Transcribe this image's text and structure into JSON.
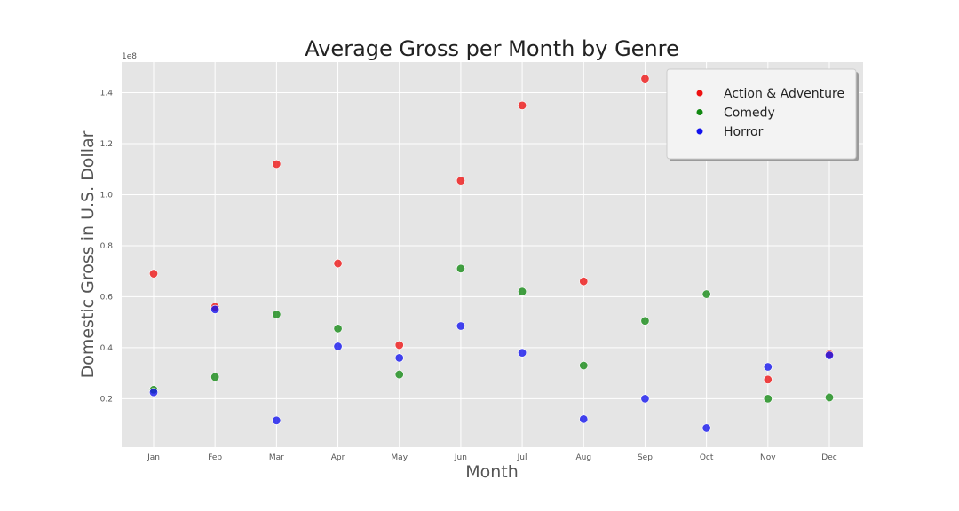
{
  "chart_data": {
    "type": "scatter",
    "title": "Average Gross per Month by Genre",
    "xlabel": "Month",
    "ylabel": "Domestic Gross in U.S. Dollar",
    "y_offset_label": "1e8",
    "categories": [
      "Jan",
      "Feb",
      "Mar",
      "Apr",
      "May",
      "Jun",
      "Jul",
      "Aug",
      "Sep",
      "Oct",
      "Nov",
      "Dec"
    ],
    "y_ticks": [
      0.2,
      0.4,
      0.6,
      0.8,
      1.0,
      1.2,
      1.4
    ],
    "ylim": [
      0.01,
      1.52
    ],
    "grid": true,
    "legend_position": "top-right",
    "series": [
      {
        "name": "Action & Adventure",
        "color": "#ee1111",
        "values": [
          0.69,
          0.56,
          1.12,
          0.73,
          0.41,
          1.055,
          1.35,
          0.66,
          1.455,
          null,
          0.275,
          0.375
        ]
      },
      {
        "name": "Comedy",
        "color": "#118811",
        "values": [
          0.235,
          0.285,
          0.53,
          0.475,
          0.295,
          0.71,
          0.62,
          0.33,
          0.505,
          0.61,
          0.2,
          0.205
        ]
      },
      {
        "name": "Horror",
        "color": "#1111ee",
        "values": [
          0.225,
          0.55,
          0.115,
          0.405,
          0.36,
          0.485,
          0.38,
          0.12,
          0.2,
          0.085,
          0.325,
          0.37
        ]
      }
    ]
  }
}
